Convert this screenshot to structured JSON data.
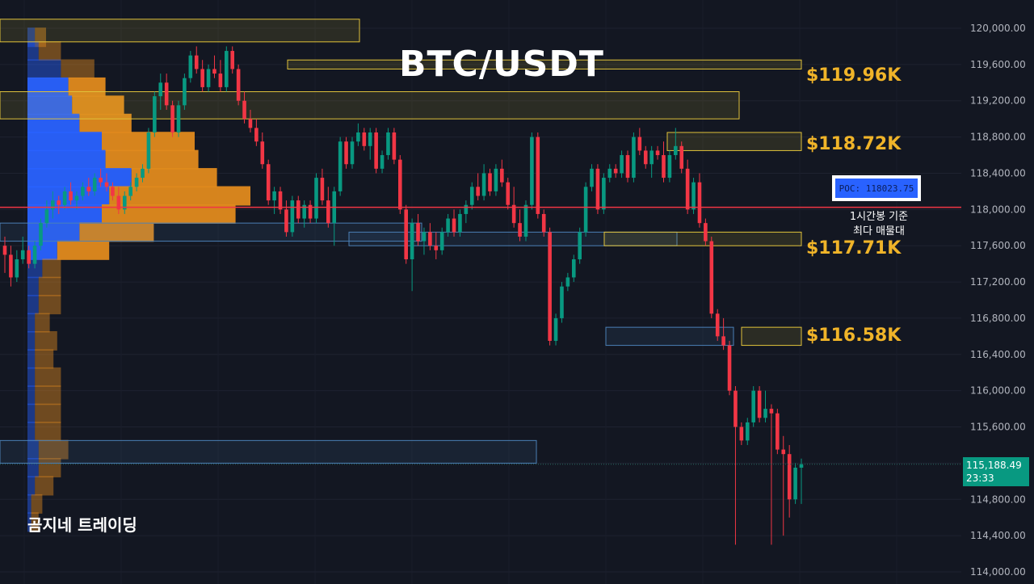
{
  "chart_data": {
    "type": "candlestick",
    "title": "BTC/USDT",
    "ylim": [
      114000,
      120000
    ],
    "y_ticks": [
      "120,000.00",
      "119,600.00",
      "119,200.00",
      "118,800.00",
      "118,400.00",
      "118,000.00",
      "117,600.00",
      "117,200.00",
      "116,800.00",
      "116,400.00",
      "116,000.00",
      "115,600.00",
      "115,200.00",
      "114,800.00",
      "114,400.00",
      "114,000.00"
    ],
    "y_tick_values": [
      120000,
      119600,
      119200,
      118800,
      118400,
      118000,
      117600,
      117200,
      116800,
      116400,
      116000,
      115600,
      115200,
      114800,
      114400,
      114000
    ],
    "candles": [
      [
        117600,
        117700,
        117300,
        117500
      ],
      [
        117500,
        117600,
        117150,
        117250
      ],
      [
        117250,
        117550,
        117200,
        117450
      ],
      [
        117450,
        117700,
        117400,
        117550
      ],
      [
        117550,
        117600,
        117350,
        117400
      ],
      [
        117400,
        117650,
        117350,
        117600
      ],
      [
        117600,
        117900,
        117550,
        117850
      ],
      [
        117850,
        118100,
        117800,
        118000
      ],
      [
        118000,
        118200,
        117900,
        118100
      ],
      [
        118100,
        118150,
        117950,
        118050
      ],
      [
        118050,
        118250,
        118000,
        118200
      ],
      [
        118200,
        118300,
        118050,
        118100
      ],
      [
        118100,
        118200,
        118000,
        118150
      ],
      [
        118150,
        118300,
        118100,
        118250
      ],
      [
        118250,
        118350,
        118150,
        118200
      ],
      [
        118200,
        118400,
        118150,
        118350
      ],
      [
        118350,
        118450,
        118250,
        118300
      ],
      [
        118300,
        118400,
        118200,
        118250
      ],
      [
        118250,
        118300,
        118100,
        118150
      ],
      [
        118150,
        118250,
        117950,
        118000
      ],
      [
        118000,
        118200,
        117950,
        118150
      ],
      [
        118150,
        118300,
        118100,
        118250
      ],
      [
        118250,
        118400,
        118200,
        118350
      ],
      [
        118350,
        118500,
        118300,
        118450
      ],
      [
        118450,
        118900,
        118400,
        118850
      ],
      [
        118850,
        119300,
        118800,
        119250
      ],
      [
        119250,
        119500,
        119100,
        119400
      ],
      [
        119400,
        119500,
        119100,
        119150
      ],
      [
        119150,
        119200,
        118800,
        118850
      ],
      [
        118850,
        119200,
        118800,
        119150
      ],
      [
        119150,
        119500,
        119100,
        119450
      ],
      [
        119450,
        119750,
        119400,
        119700
      ],
      [
        119700,
        119800,
        119500,
        119550
      ],
      [
        119550,
        119650,
        119300,
        119350
      ],
      [
        119350,
        119600,
        119300,
        119550
      ],
      [
        119550,
        119700,
        119450,
        119500
      ],
      [
        119500,
        119650,
        119300,
        119350
      ],
      [
        119350,
        119800,
        119300,
        119750
      ],
      [
        119750,
        119800,
        119500,
        119550
      ],
      [
        119550,
        119600,
        119150,
        119200
      ],
      [
        119200,
        119300,
        118950,
        119000
      ],
      [
        119000,
        119100,
        118850,
        118900
      ],
      [
        118900,
        119000,
        118700,
        118750
      ],
      [
        118750,
        118850,
        118450,
        118500
      ],
      [
        118500,
        118550,
        118050,
        118100
      ],
      [
        118100,
        118250,
        117950,
        118200
      ],
      [
        118200,
        118250,
        117950,
        118000
      ],
      [
        118000,
        118100,
        117700,
        117750
      ],
      [
        117750,
        118150,
        117700,
        118100
      ],
      [
        118100,
        118150,
        117850,
        117900
      ],
      [
        117900,
        118100,
        117800,
        118050
      ],
      [
        118050,
        118100,
        117850,
        117900
      ],
      [
        117900,
        118400,
        117850,
        118350
      ],
      [
        118350,
        118450,
        118050,
        118100
      ],
      [
        118100,
        118250,
        117800,
        117850
      ],
      [
        117850,
        118250,
        117600,
        118200
      ],
      [
        118200,
        118800,
        118150,
        118750
      ],
      [
        118750,
        118800,
        118450,
        118500
      ],
      [
        118500,
        118800,
        118450,
        118750
      ],
      [
        118750,
        118950,
        118700,
        118850
      ],
      [
        118850,
        118900,
        118650,
        118700
      ],
      [
        118700,
        118900,
        118550,
        118850
      ],
      [
        118850,
        118900,
        118400,
        118450
      ],
      [
        118450,
        118650,
        118400,
        118600
      ],
      [
        118600,
        118900,
        118550,
        118850
      ],
      [
        118850,
        118900,
        118500,
        118550
      ],
      [
        118550,
        118600,
        117950,
        118000
      ],
      [
        118000,
        118050,
        117400,
        117450
      ],
      [
        117450,
        117900,
        117100,
        117850
      ],
      [
        117850,
        117950,
        117600,
        117650
      ],
      [
        117650,
        117800,
        117500,
        117750
      ],
      [
        117750,
        117850,
        117550,
        117600
      ],
      [
        117600,
        117750,
        117450,
        117550
      ],
      [
        117550,
        117800,
        117500,
        117750
      ],
      [
        117750,
        117950,
        117700,
        117900
      ],
      [
        117900,
        118000,
        117700,
        117750
      ],
      [
        117750,
        118000,
        117700,
        117950
      ],
      [
        117950,
        118100,
        117850,
        118050
      ],
      [
        118050,
        118300,
        118000,
        118250
      ],
      [
        118250,
        118400,
        118100,
        118150
      ],
      [
        118150,
        118500,
        118100,
        118400
      ],
      [
        118400,
        118450,
        118150,
        118200
      ],
      [
        118200,
        118500,
        118150,
        118450
      ],
      [
        118450,
        118550,
        118250,
        118300
      ],
      [
        118300,
        118350,
        118000,
        118050
      ],
      [
        118050,
        118250,
        117800,
        117850
      ],
      [
        117850,
        118000,
        117650,
        117700
      ],
      [
        117700,
        118100,
        117650,
        118050
      ],
      [
        118050,
        118850,
        118000,
        118800
      ],
      [
        118800,
        118850,
        117900,
        117950
      ],
      [
        117950,
        118000,
        117700,
        117750
      ],
      [
        117750,
        117800,
        116500,
        116550
      ],
      [
        116550,
        116850,
        116500,
        116800
      ],
      [
        116800,
        117200,
        116750,
        117150
      ],
      [
        117150,
        117300,
        117100,
        117250
      ],
      [
        117250,
        117500,
        117200,
        117450
      ],
      [
        117450,
        117800,
        117400,
        117750
      ],
      [
        117750,
        118300,
        117700,
        118250
      ],
      [
        118250,
        118500,
        118200,
        118450
      ],
      [
        118450,
        118500,
        117950,
        118000
      ],
      [
        118000,
        118400,
        117950,
        118350
      ],
      [
        118350,
        118500,
        118300,
        118450
      ],
      [
        118450,
        118500,
        118350,
        118400
      ],
      [
        118400,
        118650,
        118350,
        118600
      ],
      [
        118600,
        118650,
        118300,
        118350
      ],
      [
        118350,
        118850,
        118300,
        118800
      ],
      [
        118800,
        118900,
        118600,
        118650
      ],
      [
        118650,
        118700,
        118450,
        118500
      ],
      [
        118500,
        118700,
        118350,
        118650
      ],
      [
        118650,
        118700,
        118550,
        118600
      ],
      [
        118600,
        118750,
        118300,
        118350
      ],
      [
        118350,
        118650,
        118300,
        118600
      ],
      [
        118600,
        118900,
        118550,
        118700
      ],
      [
        118700,
        118750,
        118400,
        118450
      ],
      [
        118450,
        118550,
        117950,
        118000
      ],
      [
        118000,
        118350,
        117950,
        118300
      ],
      [
        118300,
        118400,
        117800,
        117850
      ],
      [
        117850,
        117900,
        117600,
        117650
      ],
      [
        117650,
        117700,
        116800,
        116850
      ],
      [
        116850,
        116900,
        116550,
        116600
      ],
      [
        116600,
        116800,
        116450,
        116500
      ],
      [
        116500,
        116550,
        115950,
        116000
      ],
      [
        116000,
        116050,
        114300,
        115600
      ],
      [
        115600,
        115650,
        115400,
        115450
      ],
      [
        115450,
        115700,
        115400,
        115650
      ],
      [
        115650,
        116050,
        115600,
        116000
      ],
      [
        116000,
        116050,
        115650,
        115700
      ],
      [
        115700,
        116000,
        115650,
        115800
      ],
      [
        115800,
        115850,
        114300,
        115750
      ],
      [
        115750,
        115800,
        115300,
        115350
      ],
      [
        115350,
        115500,
        114400,
        115300
      ],
      [
        115300,
        115400,
        114600,
        114800
      ],
      [
        114800,
        115200,
        114750,
        115150
      ],
      [
        115150,
        115250,
        114750,
        115188
      ]
    ],
    "volume_profile": [
      [
        119900,
        2,
        3
      ],
      [
        119750,
        3,
        6
      ],
      [
        119550,
        9,
        9
      ],
      [
        119350,
        11,
        10
      ],
      [
        119150,
        12,
        14
      ],
      [
        118950,
        14,
        14
      ],
      [
        118750,
        20,
        25
      ],
      [
        118550,
        21,
        25
      ],
      [
        118350,
        28,
        23
      ],
      [
        118150,
        22,
        38
      ],
      [
        117950,
        20,
        36
      ],
      [
        117750,
        14,
        20
      ],
      [
        117550,
        8,
        14
      ],
      [
        117350,
        4,
        5
      ],
      [
        117150,
        3,
        6
      ],
      [
        116950,
        3,
        6
      ],
      [
        116750,
        2,
        4
      ],
      [
        116550,
        2,
        6
      ],
      [
        116350,
        2,
        5
      ],
      [
        116150,
        2,
        7
      ],
      [
        115950,
        2,
        7
      ],
      [
        115750,
        2,
        7
      ],
      [
        115550,
        2,
        7
      ],
      [
        115350,
        3,
        8
      ],
      [
        115150,
        3,
        6
      ],
      [
        114950,
        2,
        5
      ],
      [
        114750,
        1,
        3
      ],
      [
        114550,
        1,
        2
      ]
    ],
    "zones": [
      {
        "from": 119850,
        "to": 120100,
        "kind": "supply"
      },
      {
        "from": 119550,
        "to": 119650,
        "kind": "supply"
      },
      {
        "from": 119000,
        "to": 119300,
        "kind": "supply"
      },
      {
        "from": 118650,
        "to": 118850,
        "kind": "supply"
      },
      {
        "from": 117650,
        "to": 117850,
        "kind": "demand"
      },
      {
        "from": 117600,
        "to": 117750,
        "kind": "demand"
      },
      {
        "from": 117600,
        "to": 117750,
        "kind": "supply"
      },
      {
        "from": 116500,
        "to": 116700,
        "kind": "demand"
      },
      {
        "from": 116500,
        "to": 116700,
        "kind": "supply"
      },
      {
        "from": 115200,
        "to": 115450,
        "kind": "demand"
      }
    ],
    "poc_price": 118023.75,
    "current_price": 115188.49
  },
  "title": "BTC/USDT",
  "levels": [
    "$119.96K",
    "$118.72K",
    "$117.71K",
    "$116.58K"
  ],
  "poc_label": "POC: 118023.75",
  "poc_note_line1": "1시간봉 기준",
  "poc_note_line2": "최다 매물대",
  "brand": "곰지네 트레이딩",
  "price_tag": {
    "price": "115,188.49",
    "countdown": "23:33"
  },
  "colors": {
    "up": "#089981",
    "down": "#f23645",
    "poc_line": "#f23645",
    "supply": "#e0c23a",
    "demand": "#4a7fb5",
    "vol_buy": "#2962ff",
    "vol_sell": "#e08a1e",
    "level_text": "#f0b429"
  }
}
